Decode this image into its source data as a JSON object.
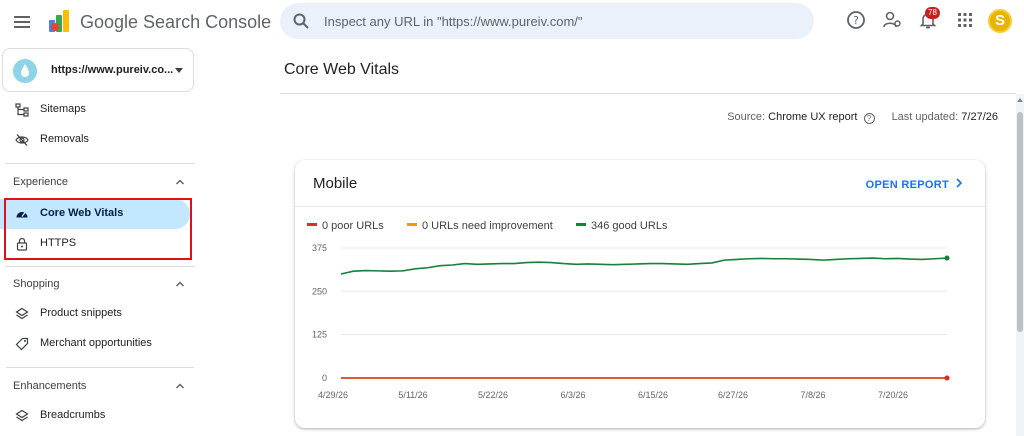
{
  "topbar": {
    "app_name": "Google Search Console",
    "search_placeholder": "Inspect any URL in \"https://www.pureiv.com/\"",
    "notification_count": "78",
    "avatar_letter": "S"
  },
  "sidebar": {
    "property_label": "https://www.pureiv.co...",
    "items_top": [
      {
        "label": "Sitemaps",
        "icon": "sitemap-icon"
      },
      {
        "label": "Removals",
        "icon": "visibility-off-icon"
      }
    ],
    "experience": {
      "title": "Experience",
      "items": [
        {
          "label": "Core Web Vitals",
          "icon": "speed-gauge-icon",
          "active": true
        },
        {
          "label": "HTTPS",
          "icon": "lock-icon"
        }
      ]
    },
    "shopping": {
      "title": "Shopping",
      "items": [
        {
          "label": "Product snippets",
          "icon": "layers-icon"
        },
        {
          "label": "Merchant opportunities",
          "icon": "tag-icon"
        }
      ]
    },
    "enhancements": {
      "title": "Enhancements",
      "items": [
        {
          "label": "Breadcrumbs",
          "icon": "layers-icon"
        }
      ]
    }
  },
  "main": {
    "page_title": "Core Web Vitals",
    "source_label": "Source:",
    "source_value": "Chrome UX report",
    "updated_label": "Last updated:",
    "updated_value": "7/27/26",
    "card": {
      "title": "Mobile",
      "action": "OPEN REPORT"
    }
  },
  "colors": {
    "poor": "#d93025",
    "needs_improvement": "#f29900",
    "good": "#188038",
    "accent": "#1a73e8",
    "highlight_box": "#e0101b"
  },
  "chart_data": {
    "type": "line",
    "x_ticks": [
      "4/29/26",
      "5/11/26",
      "5/22/26",
      "6/3/26",
      "6/15/26",
      "6/27/26",
      "7/8/26",
      "7/20/26"
    ],
    "y_ticks": [
      "0",
      "125",
      "250",
      "375"
    ],
    "ylim": [
      0,
      375
    ],
    "legend": [
      {
        "name": "0 poor URLs",
        "key": "poor"
      },
      {
        "name": "0 URLs need improvement",
        "key": "needs_improvement"
      },
      {
        "name": "346 good URLs",
        "key": "good"
      }
    ],
    "series": [
      {
        "name": "good",
        "values": [
          300,
          308,
          310,
          309,
          308,
          309,
          315,
          318,
          324,
          326,
          330,
          328,
          329,
          330,
          330,
          333,
          334,
          333,
          330,
          328,
          329,
          328,
          327,
          328,
          329,
          330,
          330,
          329,
          328,
          330,
          332,
          340,
          342,
          344,
          345,
          344,
          344,
          343,
          342,
          340,
          342,
          344,
          345,
          346,
          344,
          345,
          343,
          342,
          344,
          346
        ]
      },
      {
        "name": "poor",
        "values": [
          0,
          0,
          0,
          0,
          0,
          0,
          0,
          0,
          0,
          0,
          0,
          0,
          0,
          0,
          0,
          0,
          0,
          0,
          0,
          0,
          0,
          0,
          0,
          0,
          0,
          0,
          0,
          0,
          0,
          0,
          0,
          0,
          0,
          0,
          0,
          0,
          0,
          0,
          0,
          0,
          0,
          0,
          0,
          0,
          0,
          0,
          0,
          0,
          0,
          0
        ]
      },
      {
        "name": "needs_improvement",
        "values": [
          0,
          0,
          0,
          0,
          0,
          0,
          0,
          0,
          0,
          0,
          0,
          0,
          0,
          0,
          0,
          0,
          0,
          0,
          0,
          0,
          0,
          0,
          0,
          0,
          0,
          0,
          0,
          0,
          0,
          0,
          0,
          0,
          0,
          0,
          0,
          0,
          0,
          0,
          0,
          0,
          0,
          0,
          0,
          0,
          0,
          0,
          0,
          0,
          0,
          0
        ]
      }
    ]
  }
}
